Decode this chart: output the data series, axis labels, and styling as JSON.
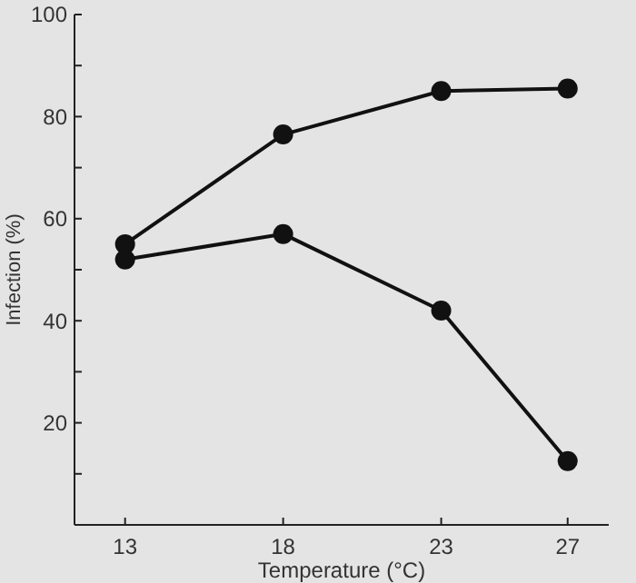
{
  "chart_data": {
    "type": "line",
    "xlabel": "Temperature (°C)",
    "ylabel": "Infection (%)",
    "x": [
      13,
      18,
      23,
      27
    ],
    "series": [
      {
        "color": "#111111",
        "values": [
          55,
          76.5,
          85,
          85.5
        ]
      },
      {
        "color": "#111111",
        "values": [
          52,
          57,
          42,
          12.5
        ]
      }
    ],
    "xlim": [
      11.4,
      28.3
    ],
    "xticks": [
      13,
      18,
      23,
      27
    ],
    "ylim": [
      0,
      100
    ],
    "yticks": [
      {
        "value": 10,
        "label": null
      },
      20,
      {
        "value": 30,
        "label": null
      },
      40,
      {
        "value": 50,
        "label": null
      },
      60,
      {
        "value": 70,
        "label": null
      },
      80,
      {
        "value": 90,
        "label": null
      },
      100
    ],
    "grid": false,
    "marker": "circle",
    "line_style": "solid"
  }
}
